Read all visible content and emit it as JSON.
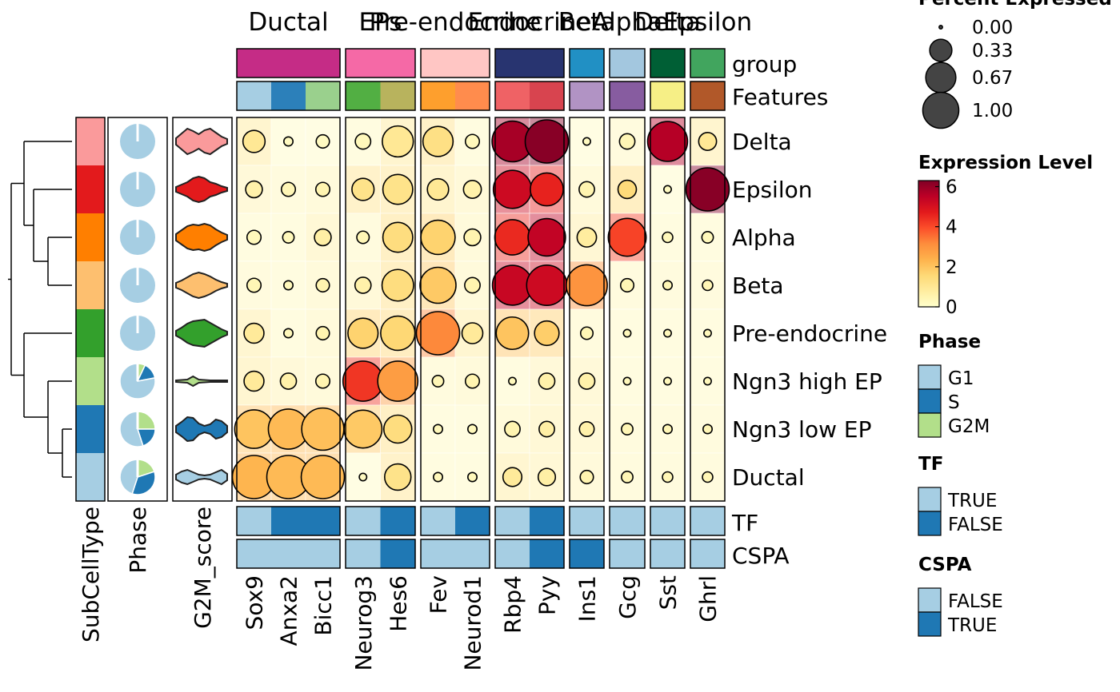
{
  "chart_data": {
    "type": "heatmap",
    "groups": [
      {
        "name": "Ductal",
        "color": "#C52C86"
      },
      {
        "name": "EPs",
        "color": "#F569A6"
      },
      {
        "name": "Pre-endocrine",
        "color": "#FFC6C4"
      },
      {
        "name": "Endocrine",
        "color": "#283470"
      },
      {
        "name": "Beta",
        "color": "#2190C4"
      },
      {
        "name": "Alpha",
        "color": "#A3C7DF"
      },
      {
        "name": "Delta",
        "color": "#005F35"
      },
      {
        "name": "Epsilon",
        "color": "#41A55E"
      }
    ],
    "group_col_counts": [
      3,
      2,
      2,
      2,
      1,
      1,
      1,
      1
    ],
    "features": [
      "Sox9",
      "Anxa2",
      "Bicc1",
      "Neurog3",
      "Hes6",
      "Fev",
      "Neurod1",
      "Rbp4",
      "Pyy",
      "Ins1",
      "Gcg",
      "Sst",
      "Ghrl"
    ],
    "feature_colors": [
      "#A6CEE3",
      "#2C80BA",
      "#9AD08D",
      "#52AF43",
      "#B8B35D",
      "#FE9F2D",
      "#FF8C4D",
      "#EF6265",
      "#D8444F",
      "#B193C4",
      "#875CA0",
      "#F6EF86",
      "#B15829"
    ],
    "celltypes": [
      "Delta",
      "Epsilon",
      "Alpha",
      "Beta",
      "Pre-endocrine",
      "Ngn3 high EP",
      "Ngn3 low EP",
      "Ductal"
    ],
    "celltype_colors": [
      "#FA9A9B",
      "#E31A1C",
      "#FF7F00",
      "#FDBF6F",
      "#33A02C",
      "#B2DF8A",
      "#1F78B4",
      "#A6CEE3"
    ],
    "expression": [
      [
        1.0,
        0.2,
        0.2,
        0.3,
        1.0,
        1.3,
        0.3,
        5.8,
        6.2,
        0.2,
        0.4,
        5.6,
        1.0
      ],
      [
        0.6,
        0.4,
        0.5,
        1.2,
        1.2,
        1.0,
        0.6,
        5.2,
        4.6,
        0.5,
        1.5,
        0.2,
        6.2
      ],
      [
        0.3,
        0.3,
        0.7,
        0.4,
        1.4,
        1.7,
        0.5,
        4.5,
        5.4,
        0.8,
        4.1,
        0.3,
        0.3
      ],
      [
        0.4,
        0.3,
        0.5,
        0.6,
        1.4,
        1.9,
        0.5,
        5.3,
        5.2,
        3.0,
        0.4,
        0.4,
        0.4
      ],
      [
        0.9,
        0.3,
        0.5,
        1.7,
        1.6,
        3.2,
        0.9,
        2.0,
        1.8,
        0.4,
        0.3,
        0.3,
        0.3
      ],
      [
        0.9,
        0.6,
        0.5,
        4.3,
        2.8,
        0.4,
        0.5,
        0.3,
        0.6,
        0.6,
        0.3,
        0.3,
        0.3
      ],
      [
        2.0,
        2.2,
        2.1,
        1.9,
        1.4,
        0.3,
        0.3,
        0.5,
        0.7,
        0.6,
        0.4,
        0.4,
        0.4
      ],
      [
        2.3,
        2.2,
        2.2,
        0.2,
        1.2,
        0.3,
        0.3,
        0.9,
        0.7,
        0.5,
        0.4,
        0.4,
        0.4
      ]
    ],
    "percent_expressed": [
      [
        0.22,
        0.02,
        0.06,
        0.09,
        0.48,
        0.45,
        0.07,
        0.88,
        1.0,
        0.01,
        0.09,
        0.84,
        0.13
      ],
      [
        0.11,
        0.07,
        0.07,
        0.22,
        0.44,
        0.2,
        0.13,
        0.76,
        0.55,
        0.09,
        0.14,
        0.01,
        1.0
      ],
      [
        0.07,
        0.04,
        0.11,
        0.05,
        0.44,
        0.6,
        0.11,
        0.64,
        0.73,
        0.16,
        0.75,
        0.03,
        0.04
      ],
      [
        0.07,
        0.02,
        0.06,
        0.1,
        0.5,
        0.67,
        0.09,
        0.84,
        0.86,
        0.89,
        0.06,
        0.02,
        0.03
      ],
      [
        0.17,
        0.02,
        0.06,
        0.45,
        0.6,
        1.0,
        0.19,
        0.53,
        0.28,
        0.05,
        0.01,
        0.01,
        0.01
      ],
      [
        0.17,
        0.1,
        0.07,
        0.85,
        0.85,
        0.04,
        0.07,
        0.01,
        0.1,
        0.1,
        0.01,
        0.01,
        0.01
      ],
      [
        0.78,
        0.85,
        0.95,
        0.75,
        0.38,
        0.02,
        0.02,
        0.09,
        0.09,
        0.08,
        0.04,
        0.02,
        0.02
      ],
      [
        1.0,
        1.0,
        1.0,
        0.01,
        0.33,
        0.02,
        0.02,
        0.15,
        0.12,
        0.06,
        0.04,
        0.03,
        0.03
      ]
    ],
    "annotation_rows": [
      "group",
      "Features"
    ],
    "bottom_rows": [
      {
        "name": "TF",
        "values": [
          "TRUE",
          "FALSE",
          "FALSE",
          "TRUE",
          "FALSE",
          "TRUE",
          "FALSE",
          "TRUE",
          "FALSE",
          "TRUE",
          "TRUE",
          "TRUE",
          "TRUE"
        ]
      },
      {
        "name": "CSPA",
        "values": [
          "FALSE",
          "FALSE",
          "FALSE",
          "FALSE",
          "TRUE",
          "FALSE",
          "FALSE",
          "FALSE",
          "TRUE",
          "TRUE",
          "FALSE",
          "FALSE",
          "FALSE"
        ]
      }
    ],
    "left_annotations": [
      "SubCellType",
      "Phase",
      "G2M_score"
    ],
    "phase_fractions": [
      {
        "G1": 1.0,
        "S": 0.0,
        "G2M": 0.0
      },
      {
        "G1": 1.0,
        "S": 0.0,
        "G2M": 0.0
      },
      {
        "G1": 1.0,
        "S": 0.0,
        "G2M": 0.0
      },
      {
        "G1": 1.0,
        "S": 0.0,
        "G2M": 0.0
      },
      {
        "G1": 1.0,
        "S": 0.0,
        "G2M": 0.0
      },
      {
        "G1": 0.78,
        "S": 0.15,
        "G2M": 0.07
      },
      {
        "G1": 0.55,
        "S": 0.2,
        "G2M": 0.25
      },
      {
        "G1": 0.45,
        "S": 0.35,
        "G2M": 0.2
      }
    ],
    "phase_colors": {
      "G1": "#A6CEE3",
      "S": "#1F78B4",
      "G2M": "#B2DF8A"
    },
    "bool_colors": {
      "TRUE": "#A6CEE3",
      "FALSE": "#1F78B4"
    },
    "cspa_colors": {
      "FALSE": "#A6CEE3",
      "TRUE": "#1F78B4"
    },
    "expression_range": [
      0,
      6.3
    ],
    "expression_colorbar_ticks": [
      0,
      2,
      4,
      6
    ],
    "expression_palette": [
      "#FFFFCC",
      "#FFEDA0",
      "#FED976",
      "#FEB24C",
      "#FD8D3C",
      "#FC4E2A",
      "#E31A1C",
      "#BD0026",
      "#800026"
    ],
    "legends": {
      "percent": {
        "title": "Percent Expressed",
        "labels": [
          "0.00",
          "0.33",
          "0.67",
          "1.00"
        ],
        "values": [
          0.0,
          0.33,
          0.67,
          1.0
        ]
      },
      "expression": {
        "title": "Expression Level"
      },
      "phase": {
        "title": "Phase",
        "labels": [
          "G1",
          "S",
          "G2M"
        ]
      },
      "tf": {
        "title": "TF",
        "labels": [
          "TRUE",
          "FALSE"
        ]
      },
      "cspa": {
        "title": "CSPA",
        "labels": [
          "FALSE",
          "TRUE"
        ]
      }
    }
  }
}
